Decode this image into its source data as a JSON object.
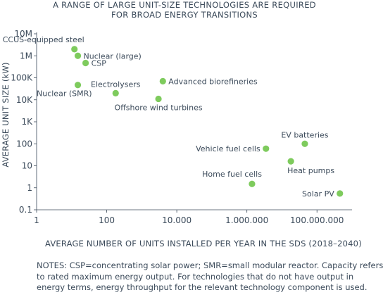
{
  "chart_data": {
    "type": "scatter",
    "title_lines": [
      "A RANGE OF LARGE UNIT-SIZE TECHNOLOGIES ARE REQUIRED",
      "FOR BROAD ENERGY TRANSITIONS"
    ],
    "xlabel": "AVERAGE NUMBER OF UNITS INSTALLED PER YEAR IN THE SDS (2018–2040)",
    "ylabel": "AVERAGE UNIT SIZE (kW)",
    "x_scale": "log",
    "y_scale": "log",
    "xlim": [
      1,
      1000000000
    ],
    "ylim": [
      0.1,
      10000000
    ],
    "x_ticks": [
      {
        "value": 1,
        "label": "1"
      },
      {
        "value": 100,
        "label": "100"
      },
      {
        "value": 10000,
        "label": "10.000"
      },
      {
        "value": 1000000,
        "label": "1.000.000"
      },
      {
        "value": 100000000,
        "label": "100.000.000"
      }
    ],
    "y_ticks": [
      {
        "value": 0.1,
        "label": "0.1"
      },
      {
        "value": 1,
        "label": "1"
      },
      {
        "value": 10,
        "label": "10"
      },
      {
        "value": 100,
        "label": "100"
      },
      {
        "value": 1000,
        "label": "1K"
      },
      {
        "value": 10000,
        "label": "10K"
      },
      {
        "value": 100000,
        "label": "100K"
      },
      {
        "value": 1000000,
        "label": "1M"
      },
      {
        "value": 10000000,
        "label": "10M"
      }
    ],
    "grid": false,
    "marker_color": "#7ecb5d",
    "points": [
      {
        "label": "CCUS-equipped steel",
        "x": 12,
        "y": 2000000,
        "label_pos": "above-left"
      },
      {
        "label": "Nuclear (large)",
        "x": 15,
        "y": 1000000,
        "label_pos": "right"
      },
      {
        "label": "CSP",
        "x": 25,
        "y": 470000,
        "label_pos": "right"
      },
      {
        "label": "Nuclear (SMR)",
        "x": 15,
        "y": 47000,
        "label_pos": "below-left"
      },
      {
        "label": "Electrolysers",
        "x": 180,
        "y": 20000,
        "label_pos": "above"
      },
      {
        "label": "Advanced biorefineries",
        "x": 4000,
        "y": 70000,
        "label_pos": "right"
      },
      {
        "label": "Offshore wind turbines",
        "x": 3000,
        "y": 11000,
        "label_pos": "below"
      },
      {
        "label": "Vehicle fuel cells",
        "x": 3500000,
        "y": 60,
        "label_pos": "left"
      },
      {
        "label": "EV batteries",
        "x": 45000000,
        "y": 100,
        "label_pos": "above"
      },
      {
        "label": "Heat pumps",
        "x": 18000000,
        "y": 16,
        "label_pos": "below-right"
      },
      {
        "label": "Home fuel cells",
        "x": 1400000,
        "y": 1.5,
        "label_pos": "above-left"
      },
      {
        "label": "Solar PV",
        "x": 450000000,
        "y": 0.55,
        "label_pos": "left"
      }
    ]
  },
  "notes": {
    "line1": "NOTES: CSP=concentrating solar power; SMR=small modular reactor. Capacity refers",
    "line2": "to rated maximum energy output. For technologies that do not have output in",
    "line3": "energy terms, energy throughput for the relevant technology component is used."
  }
}
